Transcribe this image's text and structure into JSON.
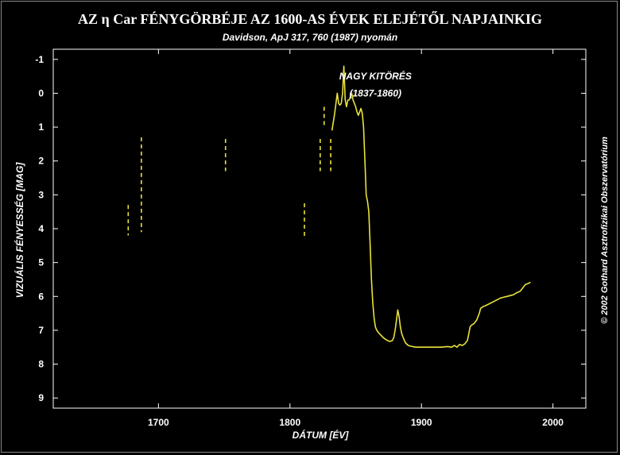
{
  "header": {
    "title": "AZ η Car FÉNYGÖRBÉJE AZ 1600-AS ÉVEK ELEJÉTŐL NAPJAINKIG",
    "subtitle": "Davidson, ApJ 317, 760 (1987) nyomán"
  },
  "credit": "© 2002 Gothard Asztrofizikai Obszervatórium",
  "colors": {
    "background": "#000000",
    "curve": "#e8e23a",
    "axis": "#ffffff"
  },
  "chart_data": {
    "type": "line",
    "title": "AZ η Car FÉNYGÖRBÉJE AZ 1600-AS ÉVEK ELEJÉTŐL NAPJAINKIG",
    "subtitle": "Davidson, ApJ 317, 760 (1987) nyomán",
    "xlabel": "DÁTUM [ÉV]",
    "ylabel": "VIZUÁLIS FÉNYESSÉG [MAG]",
    "xlim": [
      1620,
      2025
    ],
    "ylim": [
      9.3,
      -1.3
    ],
    "y_inverted": true,
    "x_ticks": [
      1700,
      1800,
      1900,
      2000
    ],
    "x_tick_labels": [
      "1700",
      "1800",
      "1900",
      "2000"
    ],
    "y_ticks": [
      -1,
      0,
      1,
      2,
      3,
      4,
      5,
      6,
      7,
      8,
      9
    ],
    "y_tick_labels": [
      "-1",
      "0",
      "1",
      "2",
      "3",
      "4",
      "5",
      "6",
      "7",
      "8",
      "9"
    ],
    "grid": false,
    "annotations": [
      {
        "text": "NAGY KITÖRÉS",
        "x": 1865,
        "y": -0.5
      },
      {
        "text": "(1837-1860)",
        "x": 1865,
        "y": 0
      }
    ],
    "range_markers": [
      {
        "x": 1677,
        "y_bright": 3.3,
        "y_faint": 4.2
      },
      {
        "x": 1687,
        "y_bright": 1.3,
        "y_faint": 4.1
      },
      {
        "x": 1751,
        "y_bright": 1.35,
        "y_faint": 2.3
      },
      {
        "x": 1811,
        "y_bright": 3.25,
        "y_faint": 4.3
      },
      {
        "x": 1823,
        "y_bright": 1.35,
        "y_faint": 2.3
      },
      {
        "x": 1826,
        "y_bright": 0.4,
        "y_faint": 1.0
      },
      {
        "x": 1831,
        "y_bright": 1.35,
        "y_faint": 2.3
      }
    ],
    "series": [
      {
        "x": [
          1832,
          1834,
          1836,
          1837,
          1838,
          1839,
          1840,
          1841,
          1842,
          1843,
          1844,
          1845,
          1846,
          1847,
          1848,
          1849,
          1850,
          1851,
          1852,
          1853,
          1854,
          1855,
          1856,
          1857,
          1858,
          1859,
          1860,
          1861,
          1862,
          1863,
          1864,
          1865,
          1866,
          1867,
          1868,
          1870,
          1872,
          1874,
          1876,
          1878,
          1879,
          1880,
          1881,
          1882,
          1883,
          1884,
          1885,
          1886,
          1887,
          1888,
          1890,
          1893,
          1896,
          1900,
          1905,
          1910,
          1915,
          1920,
          1923,
          1925,
          1927,
          1929,
          1931,
          1933,
          1935,
          1936,
          1937,
          1938,
          1940,
          1942,
          1944,
          1945,
          1947,
          1950,
          1955,
          1960,
          1965,
          1970,
          1972,
          1975,
          1977,
          1979,
          1981,
          1983
        ],
        "y": [
          1.1,
          0.6,
          0.0,
          0.3,
          0.35,
          0.3,
          0.0,
          -0.8,
          0.2,
          0.4,
          0.2,
          0.2,
          0.1,
          0.0,
          0.2,
          0.3,
          0.4,
          0.55,
          0.65,
          0.55,
          0.45,
          0.6,
          1.0,
          2.0,
          3.0,
          3.2,
          3.5,
          4.5,
          5.5,
          6.2,
          6.65,
          6.9,
          7.0,
          7.05,
          7.1,
          7.18,
          7.25,
          7.3,
          7.33,
          7.3,
          7.2,
          7.0,
          6.7,
          6.4,
          6.6,
          6.9,
          7.1,
          7.2,
          7.3,
          7.38,
          7.45,
          7.48,
          7.5,
          7.5,
          7.5,
          7.5,
          7.5,
          7.48,
          7.5,
          7.45,
          7.5,
          7.42,
          7.45,
          7.4,
          7.3,
          7.1,
          6.9,
          6.85,
          6.8,
          6.7,
          6.5,
          6.35,
          6.3,
          6.25,
          6.15,
          6.05,
          6.0,
          5.95,
          5.9,
          5.85,
          5.75,
          5.65,
          5.62,
          5.58
        ]
      }
    ]
  }
}
